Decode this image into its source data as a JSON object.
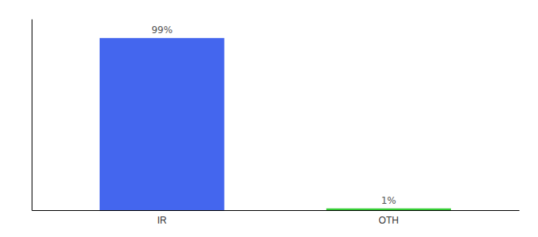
{
  "chart_data": {
    "type": "bar",
    "categories": [
      "IR",
      "OTH"
    ],
    "values": [
      99,
      1
    ],
    "value_labels": [
      "99%",
      "1%"
    ],
    "colors": [
      "#4466ee",
      "#33cc33"
    ],
    "ylim": [
      0,
      110
    ],
    "data_labels": true,
    "tick_labels": "x"
  }
}
